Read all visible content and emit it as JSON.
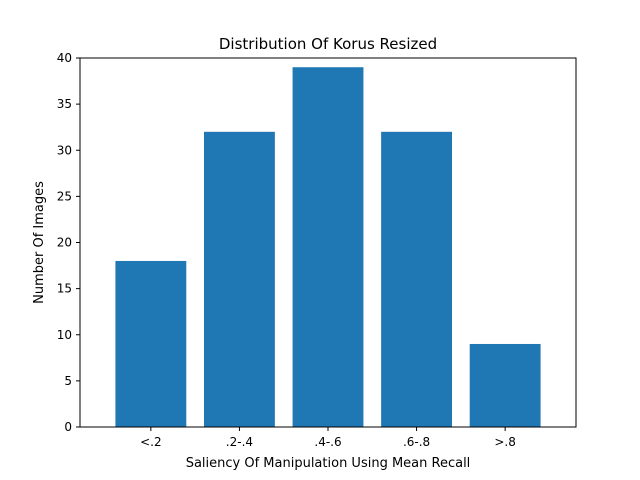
{
  "chart_data": {
    "type": "bar",
    "title": "Distribution Of Korus Resized",
    "xlabel": "Saliency Of Manipulation Using Mean Recall",
    "ylabel": "Number Of Images",
    "categories": [
      "<.2",
      ".2-.4",
      ".4-.6",
      ".6-.8",
      ">.8"
    ],
    "values": [
      18,
      32,
      39,
      32,
      9
    ],
    "ylim": [
      0,
      40
    ],
    "yticks": [
      0,
      5,
      10,
      15,
      20,
      25,
      30,
      35,
      40
    ],
    "grid": false,
    "legend": false,
    "bar_color": "#1f77b4"
  }
}
